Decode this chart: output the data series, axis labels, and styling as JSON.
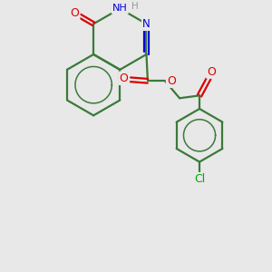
{
  "bg_color": "#e8e8e8",
  "bond_color": "#3a7a3a",
  "bond_width": 1.6,
  "N_color": "#0000dd",
  "O_color": "#dd0000",
  "Cl_color": "#00aa00",
  "H_color": "#999999",
  "figsize": [
    3.0,
    3.0
  ],
  "dpi": 100,
  "xlim": [
    0,
    10
  ],
  "ylim": [
    0,
    10
  ]
}
